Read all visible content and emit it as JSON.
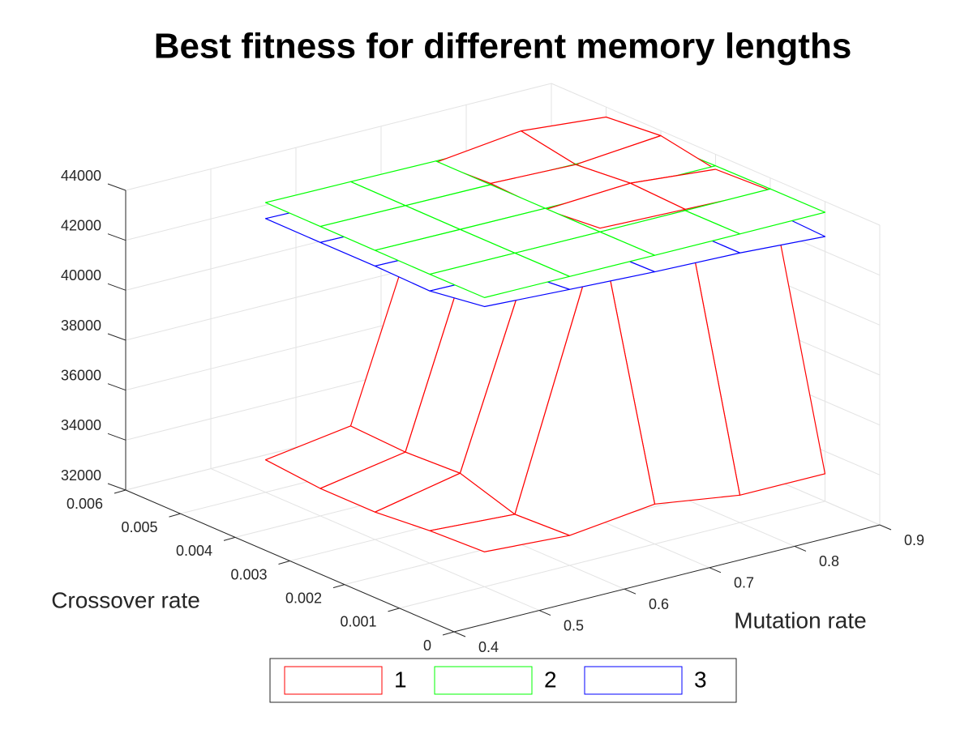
{
  "chart_data": {
    "type": "mesh3d",
    "title": "Best fitness for different memory lengths",
    "xlabel": "Mutation rate",
    "ylabel": "Crossover rate",
    "x": [
      0.5,
      0.6,
      0.7,
      0.8,
      0.9
    ],
    "y": [
      0.001,
      0.002,
      0.003,
      0.004,
      0.005
    ],
    "series": [
      {
        "name": "1",
        "color": "#ff0000",
        "values": [
          [
            33400,
            33200,
            33600,
            33100,
            33100
          ],
          [
            33300,
            33100,
            43700,
            43600,
            43500
          ],
          [
            33100,
            33800,
            43500,
            43700,
            43400
          ],
          [
            33100,
            33700,
            43600,
            43500,
            43800
          ],
          [
            33300,
            33800,
            43500,
            43900,
            43600
          ]
        ]
      },
      {
        "name": "2",
        "color": "#00ff00",
        "values": [
          [
            43580,
            43570,
            43560,
            43560,
            43570
          ],
          [
            43570,
            43560,
            43550,
            43550,
            43560
          ],
          [
            43580,
            43560,
            43550,
            43540,
            43540
          ],
          [
            43590,
            43570,
            43550,
            43520,
            43500
          ],
          [
            43600,
            43580,
            43550,
            43510,
            43480
          ]
        ]
      },
      {
        "name": "3",
        "color": "#0000ff",
        "values": [
          [
            43220,
            43050,
            42900,
            42800,
            42600
          ],
          [
            42900,
            42850,
            42850,
            42800,
            42700
          ],
          [
            42950,
            42900,
            42850,
            42800,
            42750
          ],
          [
            42950,
            42900,
            42850,
            42800,
            42750
          ],
          [
            42960,
            42900,
            42850,
            42800,
            42750
          ]
        ]
      }
    ],
    "xlim": [
      0.4,
      0.9
    ],
    "xticks": [
      0.4,
      0.5,
      0.6,
      0.7,
      0.8,
      0.9
    ],
    "ylim": [
      0,
      0.006
    ],
    "yticks": [
      0,
      0.001,
      0.002,
      0.003,
      0.004,
      0.005,
      0.006
    ],
    "zlim": [
      32000,
      44000
    ],
    "zticks": [
      32000,
      34000,
      36000,
      38000,
      40000,
      42000,
      44000
    ],
    "grid": true,
    "legend": "south"
  }
}
